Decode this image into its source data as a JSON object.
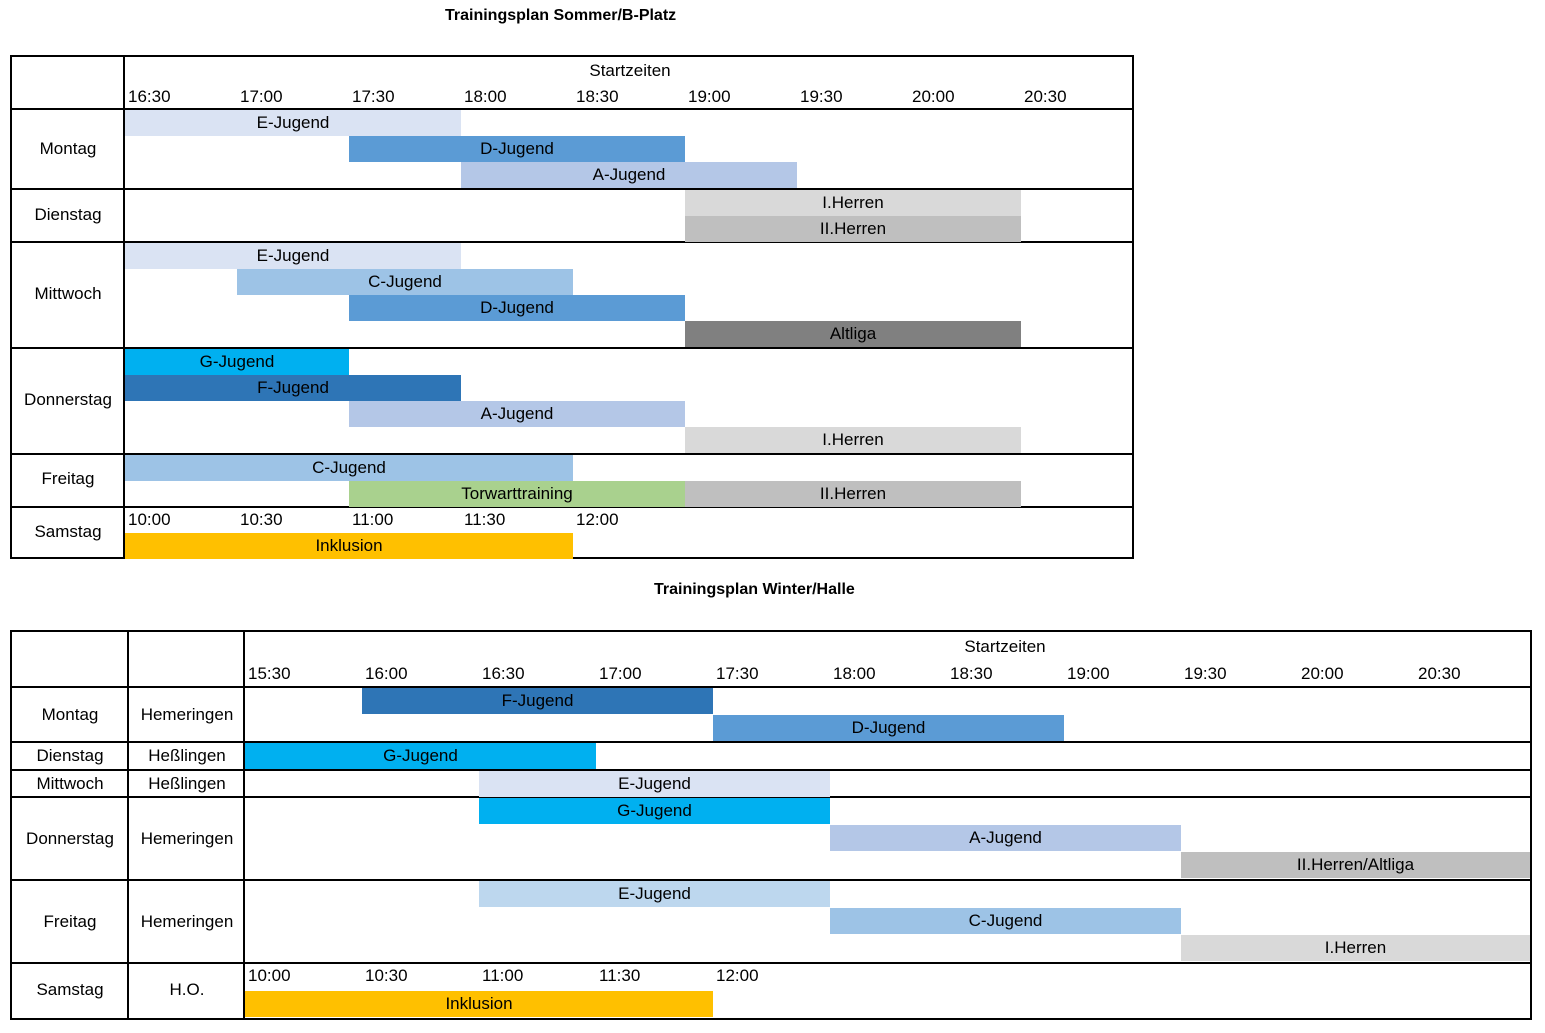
{
  "summer": {
    "title": "Trainingsplan Sommer/B-Platz",
    "header_label": "Startzeiten",
    "times": [
      "16:30",
      "17:00",
      "17:30",
      "18:00",
      "18:30",
      "19:00",
      "19:30",
      "20:00",
      "20:30"
    ],
    "saturday_times": [
      "10:00",
      "10:30",
      "11:00",
      "11:30",
      "12:00"
    ],
    "days": [
      {
        "name": "Montag",
        "sessions": [
          {
            "team": "E-Jugend",
            "start": "16:30",
            "end": "18:00",
            "color": "#dae3f3"
          },
          {
            "team": "D-Jugend",
            "start": "17:30",
            "end": "19:00",
            "color": "#5b9bd5"
          },
          {
            "team": "A-Jugend",
            "start": "18:00",
            "end": "19:30",
            "color": "#b4c7e7"
          }
        ]
      },
      {
        "name": "Dienstag",
        "sessions": [
          {
            "team": "I.Herren",
            "start": "19:00",
            "end": "20:30",
            "color": "#d9d9d9"
          },
          {
            "team": "II.Herren",
            "start": "19:00",
            "end": "20:30",
            "color": "#bfbfbf"
          }
        ]
      },
      {
        "name": "Mittwoch",
        "sessions": [
          {
            "team": "E-Jugend",
            "start": "16:30",
            "end": "18:00",
            "color": "#dae3f3"
          },
          {
            "team": "C-Jugend",
            "start": "17:00",
            "end": "18:30",
            "color": "#9dc3e6"
          },
          {
            "team": "D-Jugend",
            "start": "17:30",
            "end": "19:00",
            "color": "#5b9bd5"
          },
          {
            "team": "Altliga",
            "start": "19:00",
            "end": "20:30",
            "color": "#808080"
          }
        ]
      },
      {
        "name": "Donnerstag",
        "sessions": [
          {
            "team": "G-Jugend",
            "start": "16:30",
            "end": "17:30",
            "color": "#00b0f0"
          },
          {
            "team": "F-Jugend",
            "start": "16:30",
            "end": "18:00",
            "color": "#2e75b6"
          },
          {
            "team": "A-Jugend",
            "start": "17:30",
            "end": "19:00",
            "color": "#b4c7e7"
          },
          {
            "team": "I.Herren",
            "start": "19:00",
            "end": "20:30",
            "color": "#d9d9d9"
          }
        ]
      },
      {
        "name": "Freitag",
        "sessions": [
          {
            "team": "C-Jugend",
            "start": "16:30",
            "end": "18:30",
            "color": "#9dc3e6"
          },
          {
            "team": "Torwarttraining",
            "start": "17:30",
            "end": "19:00",
            "color": "#a9d18e"
          },
          {
            "team": "II.Herren",
            "start": "19:00",
            "end": "20:30",
            "color": "#bfbfbf"
          }
        ]
      },
      {
        "name": "Samstag",
        "sessions": [
          {
            "team": "Inklusion",
            "start": "10:00",
            "end": "12:00",
            "color": "#ffc000"
          }
        ]
      }
    ]
  },
  "winter": {
    "title": "Trainingsplan Winter/Halle",
    "header_label": "Startzeiten",
    "times": [
      "15:30",
      "16:00",
      "16:30",
      "17:00",
      "17:30",
      "18:00",
      "18:30",
      "19:00",
      "19:30",
      "20:00",
      "20:30"
    ],
    "saturday_times": [
      "10:00",
      "10:30",
      "11:00",
      "11:30",
      "12:00"
    ],
    "days": [
      {
        "name": "Montag",
        "location": "Hemeringen",
        "sessions": [
          {
            "team": "F-Jugend",
            "start": "16:00",
            "end": "17:30",
            "color": "#2e75b6"
          },
          {
            "team": "D-Jugend",
            "start": "17:30",
            "end": "19:00",
            "color": "#5b9bd5"
          }
        ]
      },
      {
        "name": "Dienstag",
        "location": "Heßlingen",
        "sessions": [
          {
            "team": "G-Jugend",
            "start": "15:30",
            "end": "17:00",
            "color": "#00b0f0"
          }
        ]
      },
      {
        "name": "Mittwoch",
        "location": "Heßlingen",
        "sessions": [
          {
            "team": "E-Jugend",
            "start": "16:30",
            "end": "18:00",
            "color": "#dae3f3"
          }
        ]
      },
      {
        "name": "Donnerstag",
        "location": "Hemeringen",
        "sessions": [
          {
            "team": "G-Jugend",
            "start": "16:30",
            "end": "18:00",
            "color": "#00b0f0"
          },
          {
            "team": "A-Jugend",
            "start": "18:00",
            "end": "19:30",
            "color": "#b4c7e7"
          },
          {
            "team": "II.Herren/Altliga",
            "start": "19:30",
            "end": "21:00",
            "color": "#bfbfbf"
          }
        ]
      },
      {
        "name": "Freitag",
        "location": "Hemeringen",
        "sessions": [
          {
            "team": "E-Jugend",
            "start": "16:30",
            "end": "18:00",
            "color": "#bdd7ee"
          },
          {
            "team": "C-Jugend",
            "start": "18:00",
            "end": "19:30",
            "color": "#9dc3e6"
          },
          {
            "team": "I.Herren",
            "start": "19:30",
            "end": "21:00",
            "color": "#d9d9d9"
          }
        ]
      },
      {
        "name": "Samstag",
        "location": "H.O.",
        "sessions": [
          {
            "team": "Inklusion",
            "start": "10:00",
            "end": "12:00",
            "color": "#ffc000"
          }
        ]
      }
    ]
  }
}
